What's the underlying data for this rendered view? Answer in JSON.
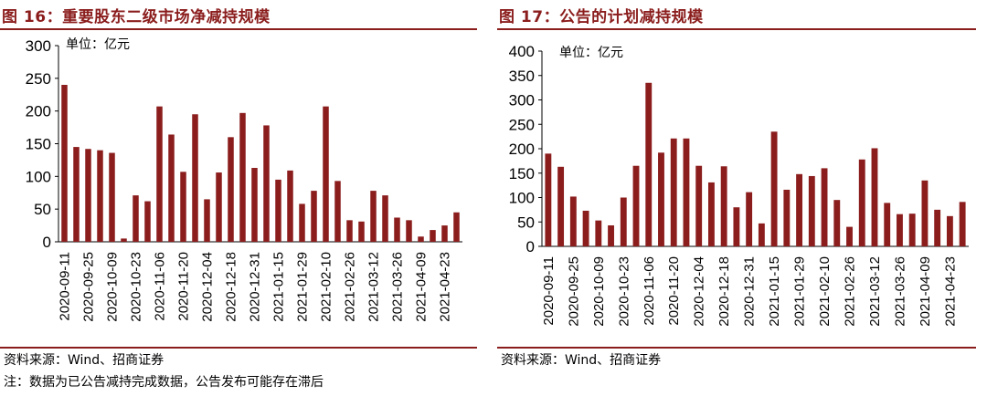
{
  "colors": {
    "accent": "#8b1d1d",
    "bar": "#8b1d1d"
  },
  "charts": [
    {
      "title": "图 16：重要股东二级市场净减持规模",
      "unit": "单位：亿元",
      "source": "资料来源：Wind、招商证券",
      "note": "注：数据为已公告减持完成数据，公告发布可能存在滞后"
    },
    {
      "title": "图 17：公告的计划减持规模",
      "unit": "单位：亿元",
      "source": "资料来源：Wind、招商证券"
    }
  ],
  "chart_data": [
    {
      "type": "bar",
      "title": "图 16：重要股东二级市场净减持规模",
      "ylabel": "单位：亿元",
      "ylim": [
        0,
        300
      ],
      "yticks": [
        0,
        50,
        100,
        150,
        200,
        250,
        300
      ],
      "xticklabels": [
        "2020-09-11",
        "2020-09-25",
        "2020-10-09",
        "2020-10-23",
        "2020-11-06",
        "2020-11-20",
        "2020-12-04",
        "2020-12-18",
        "2020-12-31",
        "2021-01-15",
        "2021-01-29",
        "2021-02-10",
        "2021-02-26",
        "2021-03-12",
        "2021-03-26",
        "2021-04-09",
        "2021-04-23"
      ],
      "values": [
        240,
        145,
        142,
        140,
        136,
        5,
        71,
        62,
        207,
        164,
        107,
        195,
        65,
        106,
        160,
        197,
        113,
        178,
        95,
        109,
        58,
        78,
        207,
        93,
        33,
        31,
        78,
        71,
        37,
        33,
        8,
        18,
        25,
        45
      ]
    },
    {
      "type": "bar",
      "title": "图 17：公告的计划减持规模",
      "ylabel": "单位：亿元",
      "ylim": [
        0,
        400
      ],
      "yticks": [
        0,
        50,
        100,
        150,
        200,
        250,
        300,
        350,
        400
      ],
      "xticklabels": [
        "2020-09-11",
        "2020-09-25",
        "2020-10-09",
        "2020-10-23",
        "2020-11-06",
        "2020-11-20",
        "2020-12-04",
        "2020-12-18",
        "2020-12-31",
        "2021-01-15",
        "2021-01-29",
        "2021-02-10",
        "2021-02-26",
        "2021-03-12",
        "2021-03-26",
        "2021-04-09",
        "2021-04-23"
      ],
      "values": [
        190,
        163,
        102,
        73,
        53,
        43,
        100,
        165,
        335,
        192,
        221,
        221,
        165,
        131,
        164,
        80,
        111,
        47,
        235,
        116,
        148,
        144,
        160,
        95,
        40,
        178,
        201,
        89,
        66,
        67,
        135,
        75,
        62,
        91
      ]
    }
  ]
}
